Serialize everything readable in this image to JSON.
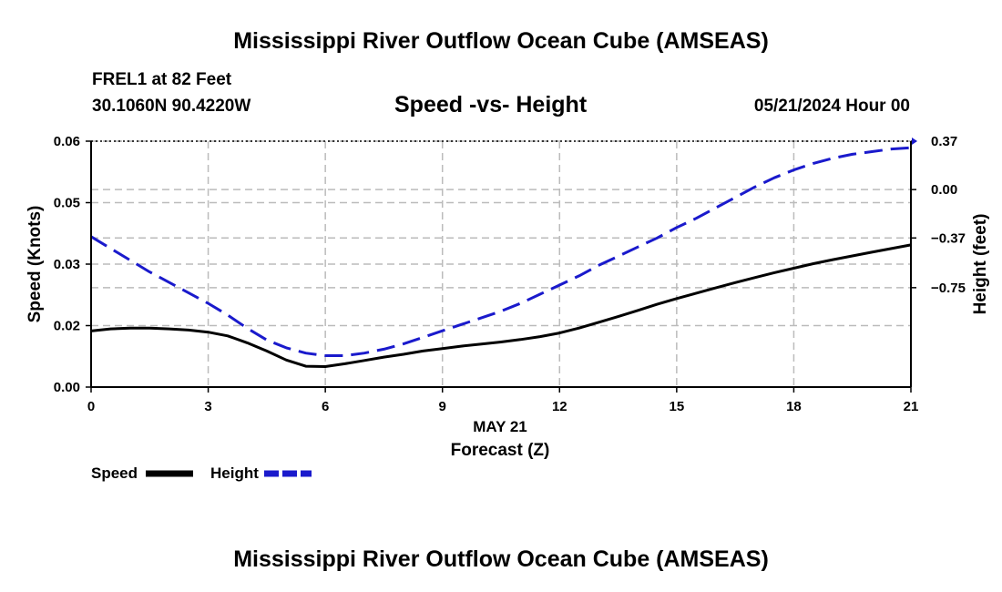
{
  "page": {
    "title_top": "Mississippi River Outflow Ocean Cube (AMSEAS)",
    "title_bottom": "Mississippi River Outflow Ocean Cube (AMSEAS)",
    "station": "FREL1 at 82 Feet",
    "coords": "30.1060N  90.4220W",
    "datetime": "05/21/2024 Hour 00"
  },
  "colors": {
    "speed": "#000000",
    "height": "#1a1acc",
    "grid": "#bbbbbb"
  },
  "chart_data": {
    "type": "line",
    "title": "Speed -vs- Height",
    "xlabel": "Forecast (Z)",
    "xdate": "MAY 21",
    "ylabel": "Speed (Knots)",
    "y2label": "Height (feet)",
    "xlim": [
      0,
      21
    ],
    "ylim": [
      0,
      0.06
    ],
    "y2lim": [
      -1.51,
      0.37
    ],
    "xticks": [
      0,
      3,
      6,
      9,
      12,
      15,
      18,
      21
    ],
    "xtick_labels": [
      "0",
      "3",
      "6",
      "9",
      "12",
      "15",
      "18",
      "21"
    ],
    "yticks": [
      0,
      0.015,
      0.03,
      0.045,
      0.06
    ],
    "ytick_labels": [
      "0.00",
      "0.02",
      "0.03",
      "0.05",
      "0.06"
    ],
    "y2ticks": [
      0.37,
      0.0,
      -0.37,
      -0.75
    ],
    "y2tick_labels": [
      "0.37",
      "0.00",
      "−0.37",
      "−0.75"
    ],
    "series": [
      {
        "name": "Speed",
        "axis": "left",
        "style": "solid",
        "x": [
          0,
          0.5,
          1,
          1.5,
          2,
          2.5,
          3,
          3.5,
          4,
          4.5,
          5,
          5.5,
          6,
          6.5,
          7,
          7.5,
          8,
          8.5,
          9,
          9.5,
          10,
          10.5,
          11,
          11.5,
          12,
          12.5,
          13,
          13.5,
          14,
          14.5,
          15,
          15.5,
          16,
          16.5,
          17,
          17.5,
          18,
          18.5,
          19,
          19.5,
          20,
          20.5,
          21
        ],
        "values": [
          0.0137,
          0.0142,
          0.0144,
          0.0144,
          0.0142,
          0.0139,
          0.0134,
          0.0125,
          0.0108,
          0.0088,
          0.0066,
          0.0051,
          0.005,
          0.0057,
          0.0065,
          0.0073,
          0.008,
          0.0088,
          0.0094,
          0.01,
          0.0105,
          0.011,
          0.0116,
          0.0123,
          0.0132,
          0.0144,
          0.0158,
          0.0172,
          0.0187,
          0.0202,
          0.0216,
          0.0229,
          0.0242,
          0.0255,
          0.0267,
          0.0279,
          0.029,
          0.0301,
          0.0311,
          0.032,
          0.0329,
          0.0338,
          0.0347
        ]
      },
      {
        "name": "Height",
        "axis": "right",
        "style": "dashed",
        "x": [
          0,
          0.5,
          1,
          1.5,
          2,
          2.5,
          3,
          3.5,
          4,
          4.5,
          5,
          5.5,
          6,
          6.5,
          7,
          7.5,
          8,
          8.5,
          9,
          9.5,
          10,
          10.5,
          11,
          11.5,
          12,
          12.5,
          13,
          13.5,
          14,
          14.5,
          15,
          15.5,
          16,
          16.5,
          17,
          17.5,
          18,
          18.5,
          19,
          19.5,
          20,
          20.5,
          21
        ],
        "values": [
          -0.36,
          -0.45,
          -0.54,
          -0.63,
          -0.71,
          -0.79,
          -0.87,
          -0.96,
          -1.06,
          -1.15,
          -1.21,
          -1.25,
          -1.27,
          -1.27,
          -1.25,
          -1.22,
          -1.18,
          -1.13,
          -1.08,
          -1.03,
          -0.98,
          -0.93,
          -0.87,
          -0.8,
          -0.73,
          -0.66,
          -0.58,
          -0.51,
          -0.44,
          -0.37,
          -0.29,
          -0.22,
          -0.14,
          -0.06,
          0.02,
          0.09,
          0.15,
          0.2,
          0.24,
          0.27,
          0.29,
          0.31,
          0.32
        ]
      }
    ],
    "legend": [
      "Speed",
      "Height"
    ]
  }
}
